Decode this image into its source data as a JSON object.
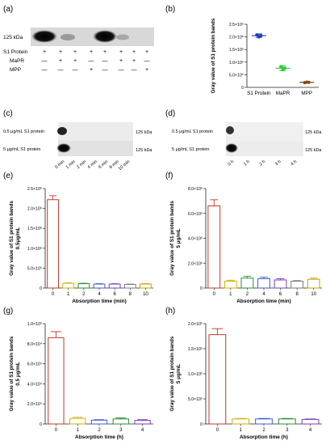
{
  "panels": {
    "a": {
      "label": "(a)",
      "marker": "125 kDa",
      "rows": [
        {
          "name": "S1 Protein",
          "values": [
            "+",
            "+",
            "+",
            "+",
            "+",
            "+",
            "+",
            "+"
          ]
        },
        {
          "name": "MaPR",
          "values": [
            "—",
            "+",
            "+",
            "—",
            "—",
            "+",
            "+",
            "—"
          ]
        },
        {
          "name": "MPP",
          "values": [
            "—",
            "—",
            "—",
            "+",
            "—",
            "—",
            "—",
            "+"
          ]
        }
      ]
    },
    "c": {
      "label": "(c)",
      "rows": [
        "0.5 μg/mL S1 protein",
        "5 μg/mL S1 protein"
      ],
      "marker": "125 kDa",
      "lanes": [
        "0 min",
        "1 min",
        "2 min",
        "4 min",
        "6 min",
        "8 min",
        "10 min"
      ]
    },
    "d": {
      "label": "(d)",
      "rows": [
        "0.5 μg/mL S1 protein",
        "5 μg/mL S1 protein"
      ],
      "marker": "125 kDa",
      "lanes": [
        "0 h",
        "1 h",
        "2 h",
        "3 h",
        "4 h"
      ]
    }
  },
  "chart_data": [
    {
      "id": "b",
      "label": "(b)",
      "type": "scatter",
      "categories": [
        "S1 Protein",
        "MaPR",
        "MPP"
      ],
      "points": [
        [
          2.08,
          2.0,
          2.05
        ],
        [
          0.82,
          0.7,
          0.76
        ],
        [
          0.19,
          0.21,
          0.2
        ]
      ],
      "means": [
        2.05,
        0.76,
        0.2
      ],
      "errors": [
        0.07,
        0.1,
        0.02
      ],
      "colors": [
        "#1f3fb5",
        "#34c83c",
        "#8b4513"
      ],
      "ylabel": "Gray value of S1 protein bands",
      "ylim": [
        0,
        2.5
      ],
      "yticks": [
        "0",
        "5.0×10⁵",
        "1.0×10⁶",
        "1.5×10⁶",
        "2.0×10⁶",
        "2.5×10⁶"
      ]
    },
    {
      "id": "e",
      "label": "(e)",
      "type": "bar",
      "categories": [
        "0",
        "1",
        "2",
        "4",
        "6",
        "8",
        "10"
      ],
      "values": [
        2.22,
        0.12,
        0.11,
        0.1,
        0.1,
        0.09,
        0.1
      ],
      "errors": [
        0.1,
        0.01,
        0.01,
        0.01,
        0.01,
        0.01,
        0.01
      ],
      "colors": [
        "#c0392b",
        "#d4b106",
        "#2e8b3a",
        "#3a5fcd",
        "#7b3fb5",
        "#7a7a7a",
        "#c8a000"
      ],
      "ylabel": [
        "Gray value of S1 protein bands",
        "0.5μg/mL"
      ],
      "xlabel": "Absorption time (min)",
      "ylim": [
        0,
        2.5
      ],
      "yticks": [
        "0",
        "5.0×10⁵",
        "1.0×10⁶",
        "1.5×10⁶",
        "2.0×10⁶",
        "2.5×10⁶"
      ]
    },
    {
      "id": "f",
      "label": "(f)",
      "type": "bar",
      "categories": [
        "0",
        "1",
        "2",
        "4",
        "6",
        "8",
        "10"
      ],
      "values": [
        6.6,
        0.55,
        0.8,
        0.75,
        0.65,
        0.55,
        0.7
      ],
      "errors": [
        0.5,
        0.08,
        0.15,
        0.12,
        0.1,
        0.05,
        0.1
      ],
      "colors": [
        "#c0392b",
        "#d4b106",
        "#2e8b3a",
        "#3a5fcd",
        "#7b3fb5",
        "#7a7a7a",
        "#c8a000"
      ],
      "ylabel": [
        "Gray value of S1 protein bands",
        "5 μg/mL"
      ],
      "xlabel": "Absorption time (min)",
      "ylim": [
        0,
        8
      ],
      "yticks": [
        "0",
        "2.0×10⁶",
        "4.0×10⁶",
        "6.0×10⁶",
        "8.0×10⁶"
      ]
    },
    {
      "id": "g",
      "label": "(g)",
      "type": "bar",
      "categories": [
        "0",
        "1",
        "2",
        "3",
        "4"
      ],
      "values": [
        8.6,
        0.55,
        0.38,
        0.5,
        0.35
      ],
      "errors": [
        0.6,
        0.12,
        0.05,
        0.1,
        0.08
      ],
      "colors": [
        "#c0392b",
        "#d4b106",
        "#3a5fcd",
        "#2e8b3a",
        "#7b3fb5"
      ],
      "ylabel": [
        "Gray value of S1 protein bands",
        "0.5 μg/mL"
      ],
      "xlabel": "Absorption time (h)",
      "ylim": [
        0,
        10
      ],
      "yticks": [
        "0",
        "2.0×10⁴",
        "4.0×10⁴",
        "6.0×10⁴",
        "8.0×10⁴",
        "1.0×10⁵"
      ]
    },
    {
      "id": "h",
      "label": "(h)",
      "type": "bar",
      "categories": [
        "0",
        "1",
        "2",
        "3",
        "4"
      ],
      "values": [
        1.78,
        0.1,
        0.1,
        0.1,
        0.09
      ],
      "errors": [
        0.12,
        0.01,
        0.01,
        0.01,
        0.01
      ],
      "colors": [
        "#c0392b",
        "#d4b106",
        "#3a5fcd",
        "#2e8b3a",
        "#7b3fb5"
      ],
      "ylabel": [
        "Gray value of S1 protein bands",
        "5 μg/mL"
      ],
      "xlabel": "Absorption time (h)",
      "ylim": [
        0,
        2
      ],
      "yticks": [
        "0",
        "5.0×10⁵",
        "1.0×10⁶",
        "1.5×10⁶",
        "2.0×10⁶"
      ]
    }
  ]
}
